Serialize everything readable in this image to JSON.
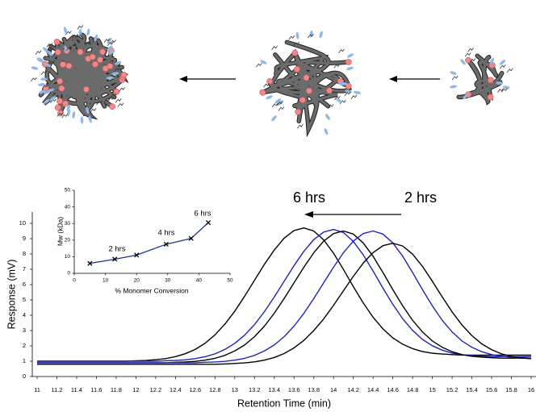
{
  "chart_data": [
    {
      "type": "line",
      "x_label": "Retention Time (min)",
      "y_label": "Response (mV)",
      "annotations": [
        "6 hrs",
        "2 hrs"
      ],
      "x": [
        11,
        11.1,
        11.2,
        11.3,
        11.4,
        11.5,
        11.6,
        11.7,
        11.8,
        11.9,
        12,
        12.1,
        12.2,
        12.3,
        12.4,
        12.5,
        12.6,
        12.7,
        12.8,
        12.9,
        13,
        13.1,
        13.2,
        13.3,
        13.4,
        13.5,
        13.6,
        13.7,
        13.8,
        13.9,
        14,
        14.1,
        14.2,
        14.3,
        14.4,
        14.5,
        14.6,
        14.7,
        14.8,
        14.9,
        15,
        15.1,
        15.2,
        15.3,
        15.4,
        15.5,
        15.6,
        15.7,
        15.8,
        15.9,
        16
      ],
      "series": [
        {
          "color": "#000000",
          "values": [
            1,
            1,
            1,
            1,
            1,
            1,
            1,
            1,
            1,
            1,
            1.03,
            1.05,
            1.1,
            1.17,
            1.3,
            1.49,
            1.77,
            2.17,
            2.72,
            3.42,
            4.26,
            5.24,
            6.28,
            7.32,
            8.26,
            9.03,
            9.53,
            9.7,
            9.5,
            8.92,
            8.05,
            6.99,
            5.87,
            4.81,
            3.87,
            3.11,
            2.52,
            2.11,
            1.82,
            1.63,
            1.52,
            1.47,
            1.43,
            1.4,
            1.4,
            1.4,
            1.4,
            1.4,
            1.4,
            1.4,
            1.4
          ]
        },
        {
          "color": "#2222bb",
          "values": [
            1,
            1,
            1,
            1,
            1,
            1,
            1,
            1,
            1,
            1,
            1,
            1,
            1,
            1.03,
            1.05,
            1.09,
            1.17,
            1.29,
            1.48,
            1.77,
            2.16,
            2.7,
            3.39,
            4.23,
            5.19,
            6.22,
            7.24,
            8.18,
            8.94,
            9.43,
            9.6,
            9.4,
            8.82,
            7.95,
            6.89,
            5.77,
            4.71,
            3.77,
            3.01,
            2.42,
            2.01,
            1.72,
            1.53,
            1.42,
            1.37,
            1.33,
            1.3,
            1.3,
            1.3,
            1.3,
            1.3
          ]
        },
        {
          "color": "#000000",
          "values": [
            0.9,
            0.9,
            0.9,
            0.9,
            0.9,
            0.9,
            0.9,
            0.9,
            0.9,
            0.9,
            0.9,
            0.9,
            0.9,
            0.9,
            0.93,
            0.95,
            0.99,
            1.07,
            1.19,
            1.38,
            1.67,
            2.06,
            2.6,
            3.29,
            4.13,
            5.09,
            6.12,
            7.14,
            8.08,
            8.84,
            9.33,
            9.5,
            9.3,
            8.72,
            7.85,
            6.79,
            5.67,
            4.61,
            3.67,
            2.91,
            2.32,
            1.91,
            1.62,
            1.43,
            1.32,
            1.27,
            1.23,
            1.2,
            1.2,
            1.2,
            1.2
          ]
        },
        {
          "color": "#2222bb",
          "values": [
            0.9,
            0.9,
            0.9,
            0.9,
            0.9,
            0.9,
            0.9,
            0.9,
            0.9,
            0.9,
            0.9,
            0.9,
            0.9,
            0.9,
            0.9,
            0.9,
            0.9,
            0.93,
            0.95,
            0.99,
            1.07,
            1.19,
            1.38,
            1.67,
            2.06,
            2.6,
            3.29,
            4.13,
            5.09,
            6.12,
            7.14,
            8.08,
            8.84,
            9.33,
            9.5,
            9.3,
            8.72,
            7.85,
            6.79,
            5.67,
            4.61,
            3.67,
            2.91,
            2.32,
            1.91,
            1.62,
            1.43,
            1.32,
            1.27,
            1.23,
            1.2
          ]
        },
        {
          "color": "#000000",
          "values": [
            0.8,
            0.8,
            0.8,
            0.8,
            0.8,
            0.8,
            0.8,
            0.8,
            0.8,
            0.8,
            0.8,
            0.8,
            0.8,
            0.8,
            0.8,
            0.8,
            0.8,
            0.8,
            0.8,
            0.82,
            0.85,
            0.89,
            0.96,
            1.07,
            1.24,
            1.5,
            1.87,
            2.36,
            3,
            3.76,
            4.65,
            5.6,
            6.54,
            7.4,
            8.09,
            8.54,
            8.7,
            8.52,
            7.99,
            7.19,
            6.22,
            5.2,
            4.22,
            3.36,
            2.67,
            2.13,
            1.75,
            1.48,
            1.31,
            1.21,
            1.16
          ]
        }
      ],
      "xlim": [
        11,
        16
      ],
      "xticks": [
        11,
        11.2,
        11.4,
        11.6,
        11.8,
        12,
        12.2,
        12.4,
        12.6,
        12.8,
        13,
        13.2,
        13.4,
        13.6,
        13.8,
        14,
        14.2,
        14.4,
        14.6,
        14.8,
        15,
        15.2,
        15.4,
        15.6,
        15.8,
        16
      ],
      "ylim": [
        0,
        10
      ],
      "yticks": [
        0,
        1,
        2,
        3,
        4,
        5,
        6,
        7,
        8,
        9,
        10
      ]
    },
    {
      "type": "line",
      "marker": "x",
      "x_label": "% Monomer Conversion",
      "y_label": "Mw (kDa)",
      "annotations": [
        "2 hrs",
        "4 hrs",
        "6 hrs"
      ],
      "x": [
        5,
        13,
        20,
        29.5,
        37.5,
        43
      ],
      "series": [
        {
          "color": "#1f2f8f",
          "values": [
            6,
            8.5,
            11,
            17.5,
            21,
            30.5
          ]
        }
      ],
      "xlim": [
        0,
        50
      ],
      "xticks": [
        0,
        10,
        20,
        30,
        40,
        50
      ],
      "ylim": [
        0,
        50
      ],
      "yticks": [
        0,
        10,
        20,
        30,
        40,
        50
      ]
    }
  ]
}
